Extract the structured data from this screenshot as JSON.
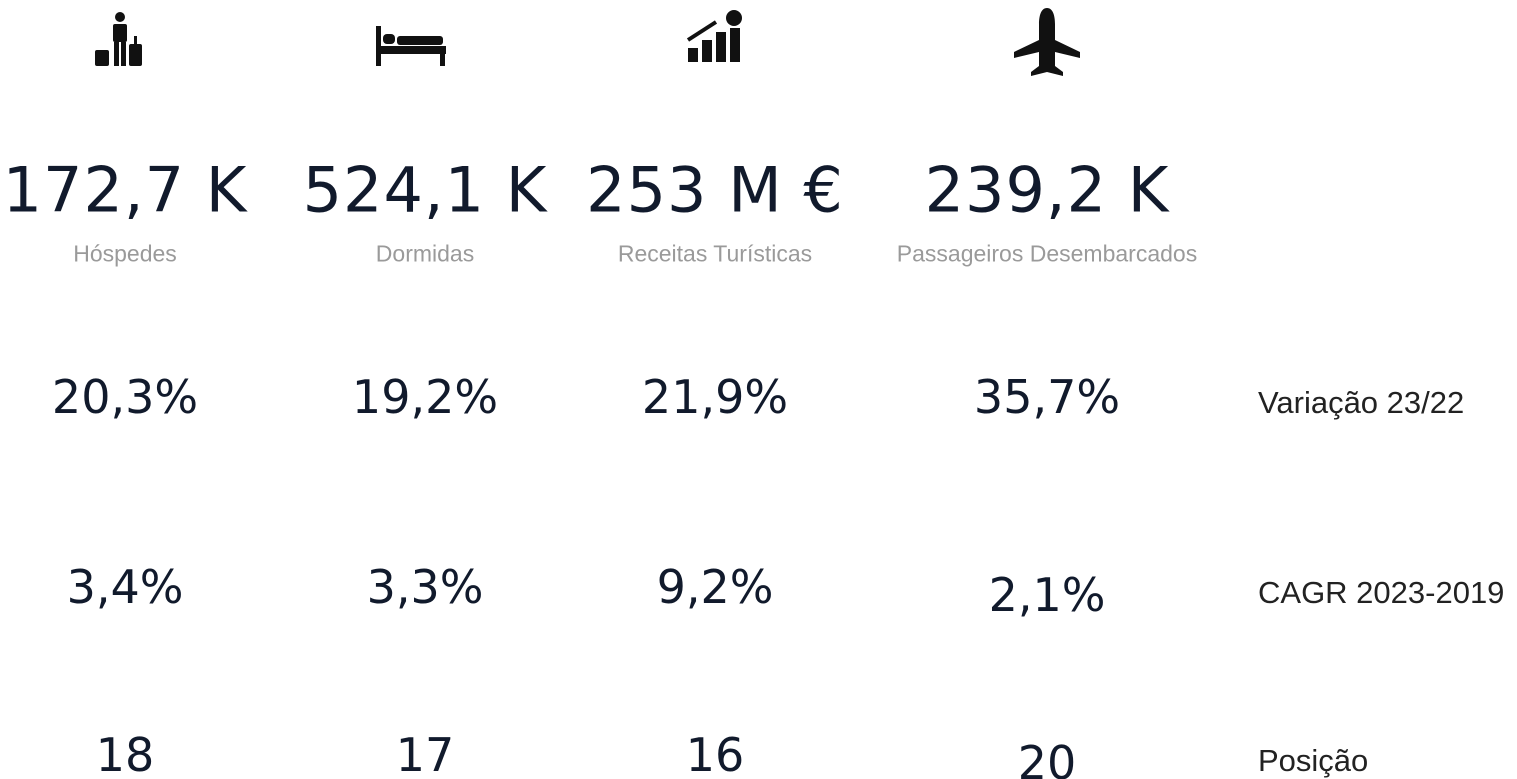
{
  "columns": [
    {
      "value": "172,7 K",
      "label": "Hóspedes",
      "variation": "20,3%",
      "cagr": "3,4%",
      "position": "18"
    },
    {
      "value": "524,1 K",
      "label": "Dormidas",
      "variation": "19,2%",
      "cagr": "3,3%",
      "position": "17"
    },
    {
      "value": "253 M €",
      "label": "Receitas Turísticas",
      "variation": "21,9%",
      "cagr": "9,2%",
      "position": "16"
    },
    {
      "value": "239,2 K",
      "label": "Passageiros Desembarcados",
      "variation": "35,7%",
      "cagr": "2,1%",
      "position": "20"
    }
  ],
  "row_labels": {
    "variation": "Variação 23/22",
    "cagr": "CAGR 2023-2019",
    "position": "Posição"
  }
}
